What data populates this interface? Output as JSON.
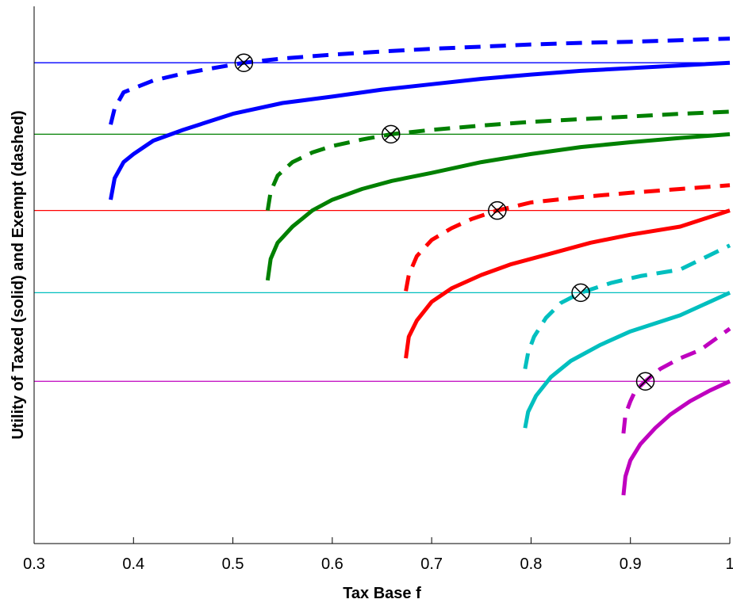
{
  "chart_data": {
    "type": "line",
    "title": "",
    "xlabel": "Tax Base f",
    "ylabel": "Utility of Taxed (solid) and Exempt (dashed)",
    "xlim": [
      0.3,
      1.0
    ],
    "ylim": [
      0,
      1
    ],
    "xticks": [
      0.3,
      0.4,
      0.5,
      0.6,
      0.7,
      0.8,
      0.9,
      1.0
    ],
    "xtick_labels": [
      "0.3",
      "0.4",
      "0.5",
      "0.6",
      "0.7",
      "0.8",
      "0.9",
      "1"
    ],
    "yticks": [],
    "grid": false,
    "legend": "none",
    "series": [
      {
        "color": "#0000ff",
        "reference_level": 0.895,
        "crossing_marker": {
          "x": 0.511,
          "y": 0.895
        },
        "taxed_solid": {
          "x": [
            0.377,
            0.381,
            0.39,
            0.4,
            0.42,
            0.45,
            0.5,
            0.55,
            0.6,
            0.65,
            0.7,
            0.75,
            0.8,
            0.85,
            0.9,
            0.95,
            1.0
          ],
          "y": [
            0.64,
            0.68,
            0.71,
            0.725,
            0.75,
            0.77,
            0.8,
            0.82,
            0.832,
            0.845,
            0.855,
            0.865,
            0.873,
            0.88,
            0.885,
            0.89,
            0.895
          ]
        },
        "exempt_dashed": {
          "x": [
            0.377,
            0.381,
            0.39,
            0.42,
            0.45,
            0.48,
            0.511,
            0.55,
            0.6,
            0.65,
            0.7,
            0.75,
            0.8,
            0.85,
            0.9,
            0.95,
            1.0
          ],
          "y": [
            0.78,
            0.81,
            0.84,
            0.862,
            0.875,
            0.885,
            0.895,
            0.903,
            0.91,
            0.916,
            0.921,
            0.925,
            0.929,
            0.932,
            0.934,
            0.937,
            0.94
          ]
        }
      },
      {
        "color": "#008000",
        "reference_level": 0.762,
        "crossing_marker": {
          "x": 0.659,
          "y": 0.762
        },
        "taxed_solid": {
          "x": [
            0.535,
            0.538,
            0.545,
            0.56,
            0.58,
            0.6,
            0.63,
            0.66,
            0.7,
            0.75,
            0.8,
            0.85,
            0.9,
            0.95,
            1.0
          ],
          "y": [
            0.49,
            0.53,
            0.56,
            0.59,
            0.62,
            0.64,
            0.66,
            0.675,
            0.69,
            0.71,
            0.725,
            0.738,
            0.747,
            0.755,
            0.762
          ]
        },
        "exempt_dashed": {
          "x": [
            0.535,
            0.538,
            0.545,
            0.56,
            0.58,
            0.6,
            0.63,
            0.659,
            0.7,
            0.75,
            0.8,
            0.85,
            0.9,
            0.95,
            1.0
          ],
          "y": [
            0.62,
            0.655,
            0.685,
            0.71,
            0.728,
            0.74,
            0.752,
            0.762,
            0.77,
            0.778,
            0.785,
            0.79,
            0.795,
            0.8,
            0.804
          ]
        }
      },
      {
        "color": "#ff0000",
        "reference_level": 0.62,
        "crossing_marker": {
          "x": 0.766,
          "y": 0.62
        },
        "taxed_solid": {
          "x": [
            0.674,
            0.677,
            0.685,
            0.7,
            0.72,
            0.75,
            0.78,
            0.82,
            0.86,
            0.9,
            0.95,
            1.0
          ],
          "y": [
            0.345,
            0.385,
            0.415,
            0.45,
            0.475,
            0.5,
            0.52,
            0.54,
            0.56,
            0.575,
            0.59,
            0.62
          ]
        },
        "exempt_dashed": {
          "x": [
            0.674,
            0.677,
            0.685,
            0.7,
            0.72,
            0.74,
            0.766,
            0.8,
            0.85,
            0.9,
            0.95,
            1.0
          ],
          "y": [
            0.47,
            0.5,
            0.535,
            0.565,
            0.587,
            0.604,
            0.62,
            0.635,
            0.645,
            0.653,
            0.66,
            0.667
          ]
        }
      },
      {
        "color": "#00bfbf",
        "reference_level": 0.467,
        "crossing_marker": {
          "x": 0.85,
          "y": 0.467
        },
        "taxed_solid": {
          "x": [
            0.794,
            0.797,
            0.805,
            0.82,
            0.84,
            0.87,
            0.9,
            0.95,
            1.0
          ],
          "y": [
            0.215,
            0.245,
            0.275,
            0.31,
            0.34,
            0.37,
            0.395,
            0.425,
            0.467
          ]
        },
        "exempt_dashed": {
          "x": [
            0.794,
            0.797,
            0.803,
            0.815,
            0.83,
            0.85,
            0.88,
            0.91,
            0.95,
            1.0
          ],
          "y": [
            0.325,
            0.355,
            0.385,
            0.42,
            0.448,
            0.467,
            0.485,
            0.498,
            0.51,
            0.555
          ]
        }
      },
      {
        "color": "#bf00bf",
        "reference_level": 0.302,
        "crossing_marker": {
          "x": 0.915,
          "y": 0.302
        },
        "taxed_solid": {
          "x": [
            0.893,
            0.895,
            0.9,
            0.91,
            0.925,
            0.94,
            0.96,
            0.98,
            1.0
          ],
          "y": [
            0.09,
            0.125,
            0.155,
            0.185,
            0.215,
            0.24,
            0.265,
            0.285,
            0.302
          ]
        },
        "exempt_dashed": {
          "x": [
            0.893,
            0.895,
            0.9,
            0.905,
            0.915,
            0.93,
            0.95,
            0.97,
            1.0
          ],
          "y": [
            0.205,
            0.24,
            0.265,
            0.285,
            0.302,
            0.325,
            0.345,
            0.36,
            0.4
          ]
        }
      }
    ]
  }
}
